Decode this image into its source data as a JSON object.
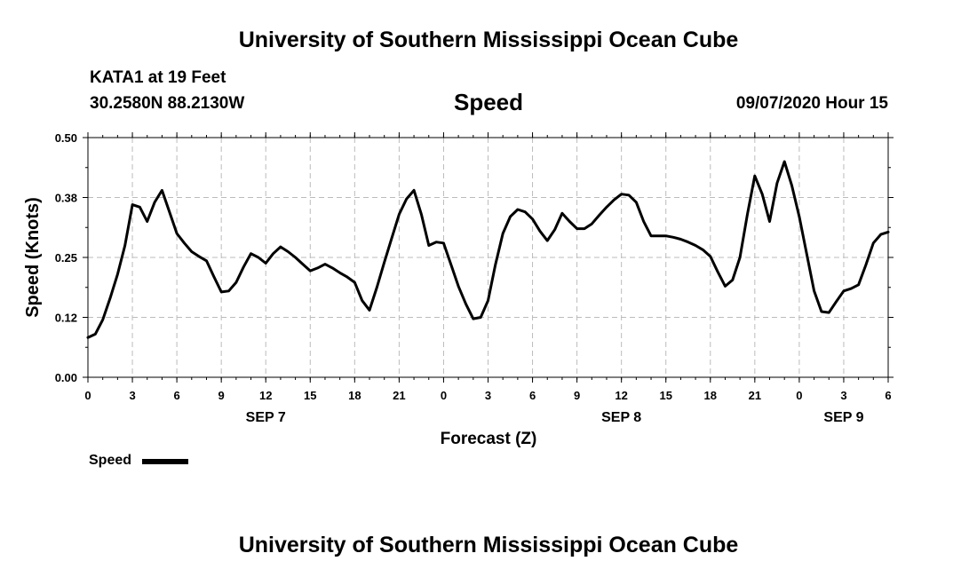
{
  "header": {
    "top_title": "University of Southern Mississippi Ocean Cube",
    "bottom_title": "University of Southern Mississippi Ocean Cube"
  },
  "station": {
    "name_depth": "KATA1 at 19 Feet",
    "coords": "30.2580N 88.2130W"
  },
  "plot_title": "Speed",
  "run_time": "09/07/2020 Hour 15",
  "legend": {
    "label": "Speed",
    "color": "#000000"
  },
  "chart_data": {
    "type": "line",
    "xlabel": "Forecast (Z)",
    "ylabel": "Speed (Knots)",
    "ylim": [
      0.0,
      0.5
    ],
    "xlim": [
      0,
      54
    ],
    "y_ticks": [
      "0.00",
      "0.12",
      "0.25",
      "0.38",
      "0.50"
    ],
    "x_tick_labels": [
      "0",
      "3",
      "6",
      "9",
      "12",
      "15",
      "18",
      "21",
      "0",
      "3",
      "6",
      "9",
      "12",
      "15",
      "18",
      "21",
      "0",
      "3",
      "6"
    ],
    "date_labels": [
      {
        "label": "SEP 7",
        "hour": 12
      },
      {
        "label": "SEP 8",
        "hour": 36
      },
      {
        "label": "SEP 9",
        "hour": 51
      }
    ],
    "grid": true,
    "legend_position": "bottom-left",
    "series": [
      {
        "name": "Speed",
        "color": "#000000",
        "x": [
          0,
          0.5,
          1,
          1.5,
          2,
          2.5,
          3,
          3.5,
          4,
          4.5,
          5,
          5.5,
          6,
          6.5,
          7,
          7.5,
          8,
          8.5,
          9,
          9.5,
          10,
          10.5,
          11,
          11.5,
          12,
          12.5,
          13,
          13.5,
          14,
          14.5,
          15,
          15.5,
          16,
          16.5,
          17,
          17.5,
          18,
          18.5,
          19,
          19.5,
          20,
          20.5,
          21,
          21.5,
          22,
          22.5,
          23,
          23.5,
          24,
          24.5,
          25,
          25.5,
          26,
          26.5,
          27,
          27.5,
          28,
          28.5,
          29,
          29.5,
          30,
          30.5,
          31,
          31.5,
          32,
          32.5,
          33,
          33.5,
          34,
          34.5,
          35,
          35.5,
          36,
          36.5,
          37,
          37.5,
          38,
          38.5,
          39,
          39.5,
          40,
          40.5,
          41,
          41.5,
          42,
          42.5,
          43,
          43.5,
          44,
          44.5,
          45,
          45.5,
          46,
          46.5,
          47,
          47.5,
          48,
          48.5,
          49,
          49.5,
          50,
          50.5,
          51,
          51.5,
          52,
          52.5,
          53,
          53.5,
          54
        ],
        "y": [
          0.083,
          0.09,
          0.12,
          0.165,
          0.215,
          0.275,
          0.36,
          0.355,
          0.325,
          0.365,
          0.39,
          0.345,
          0.3,
          0.28,
          0.262,
          0.252,
          0.243,
          0.21,
          0.178,
          0.18,
          0.198,
          0.23,
          0.258,
          0.25,
          0.238,
          0.258,
          0.272,
          0.262,
          0.25,
          0.236,
          0.222,
          0.228,
          0.236,
          0.228,
          0.218,
          0.209,
          0.198,
          0.16,
          0.14,
          0.188,
          0.24,
          0.29,
          0.34,
          0.372,
          0.39,
          0.34,
          0.275,
          0.282,
          0.28,
          0.235,
          0.19,
          0.153,
          0.122,
          0.125,
          0.16,
          0.235,
          0.3,
          0.335,
          0.35,
          0.345,
          0.33,
          0.305,
          0.285,
          0.308,
          0.342,
          0.325,
          0.31,
          0.31,
          0.32,
          0.338,
          0.355,
          0.37,
          0.382,
          0.38,
          0.365,
          0.325,
          0.295,
          0.295,
          0.295,
          0.292,
          0.288,
          0.282,
          0.275,
          0.266,
          0.252,
          0.22,
          0.19,
          0.203,
          0.25,
          0.34,
          0.42,
          0.382,
          0.325,
          0.405,
          0.45,
          0.4,
          0.335,
          0.258,
          0.18,
          0.137,
          0.135,
          0.158,
          0.18,
          0.185,
          0.193,
          0.235,
          0.28,
          0.298,
          0.303
        ]
      }
    ]
  }
}
